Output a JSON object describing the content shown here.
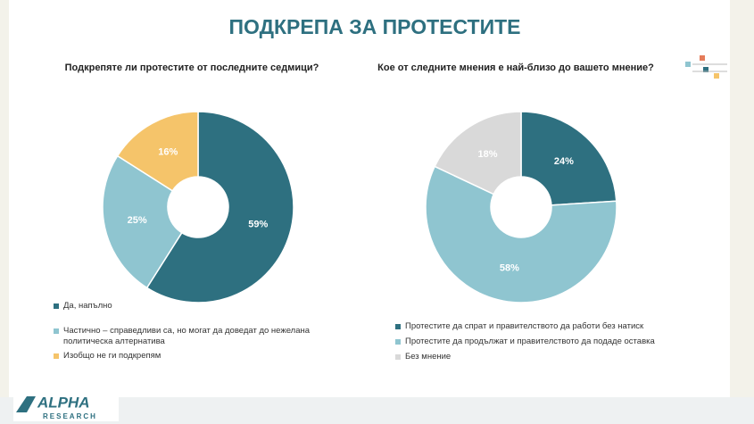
{
  "title": "ПОДКРЕПА ЗА ПРОТЕСТИТЕ",
  "logo": {
    "name": "ALPHA",
    "subtitle": "RESEARCH"
  },
  "chart_data": [
    {
      "type": "donut",
      "title": "Подкрепяте ли протестите от последните седмици?",
      "categories": [
        "Да, напълно",
        "Частично – справедливи са, но могат да доведат до нежелана политическа алтернатива",
        "Изобщо не ги подкрепям"
      ],
      "values": [
        59,
        25,
        16
      ],
      "value_labels": [
        "59%",
        "25%",
        "16%"
      ],
      "colors": [
        "#2e7080",
        "#8fc5d0",
        "#f5c46a"
      ]
    },
    {
      "type": "donut",
      "title": "Кое от следните мнения е най-близо до вашето мнение?",
      "categories": [
        "Протестите да спрат и правителството да работи без натиск",
        "Протестите да продължат и правителството да подаде оставка",
        "Без мнение"
      ],
      "values": [
        24,
        58,
        18
      ],
      "value_labels": [
        "24%",
        "58%",
        "18%"
      ],
      "colors": [
        "#2e7080",
        "#8fc5d0",
        "#d9d9d9"
      ]
    }
  ]
}
